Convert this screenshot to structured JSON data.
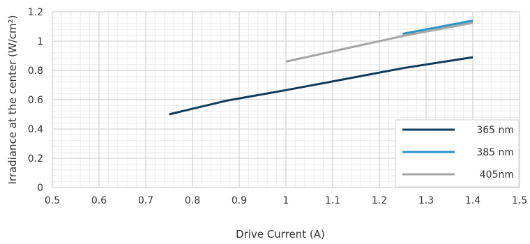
{
  "chart_data": {
    "type": "line",
    "xlabel": "Drive Current (A)",
    "ylabel": "Irradiance at the center (W/cm²)",
    "xlim": [
      0.5,
      1.5
    ],
    "ylim": [
      0,
      1.2
    ],
    "x_ticks": [
      "0.5",
      "0.6",
      "0.7",
      "0.8",
      "0.9",
      "1",
      "1.1",
      "1.2",
      "1.3",
      "1.4",
      "1.5"
    ],
    "y_ticks": [
      "0",
      "0.2",
      "0.4",
      "0.6",
      "0.8",
      "1",
      "1.2"
    ],
    "grid": true,
    "legend_position": "bottom-right",
    "series": [
      {
        "name": "365 nm",
        "color": "#0f3a5a",
        "x": [
          0.75,
          0.875,
          1.0,
          1.125,
          1.25,
          1.4
        ],
        "y": [
          0.5,
          0.595,
          0.665,
          0.74,
          0.815,
          0.89
        ]
      },
      {
        "name": "385 nm",
        "color": "#2b93c3",
        "x": [
          1.25,
          1.4
        ],
        "y": [
          1.05,
          1.14
        ]
      },
      {
        "name": "405nm",
        "color": "#a6a6a6",
        "x": [
          1.0,
          1.25,
          1.4
        ],
        "y": [
          0.86,
          1.035,
          1.125
        ]
      }
    ]
  }
}
